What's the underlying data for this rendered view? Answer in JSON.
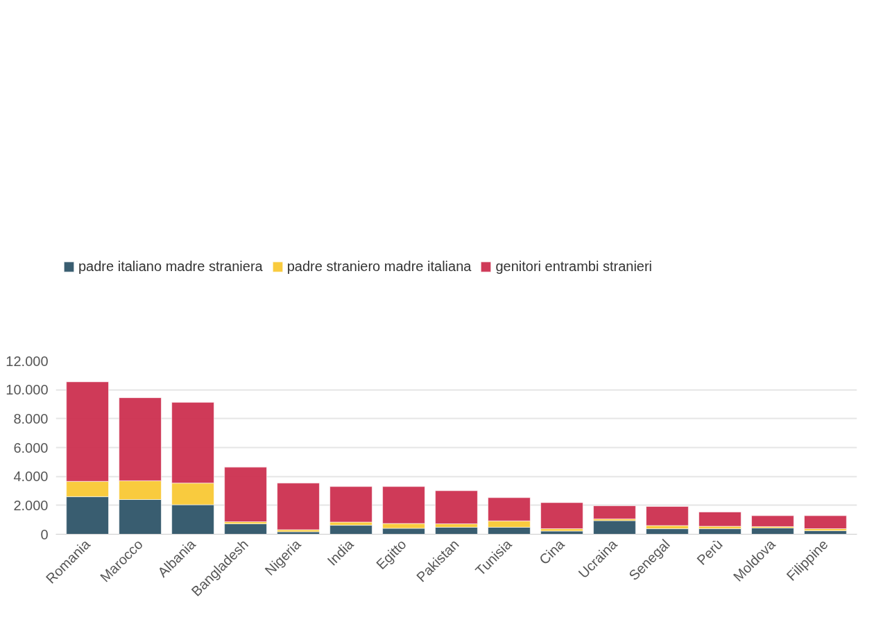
{
  "chart_data": {
    "type": "bar",
    "stacked": true,
    "categories": [
      "Romania",
      "Marocco",
      "Albania",
      "Bangladesh",
      "Nigeria",
      "India",
      "Egitto",
      "Pakistan",
      "Tunisia",
      "Cina",
      "Ucraina",
      "Senegal",
      "Perù",
      "Moldova",
      "Filippine"
    ],
    "series": [
      {
        "name": "padre italiano madre straniera",
        "color": "#2e5468",
        "values": [
          2600,
          2400,
          2040,
          720,
          170,
          620,
          410,
          480,
          480,
          220,
          940,
          380,
          380,
          430,
          240
        ]
      },
      {
        "name": "padre straniero madre italiana",
        "color": "#f9c834",
        "values": [
          1060,
          1300,
          1500,
          140,
          140,
          220,
          330,
          240,
          440,
          160,
          120,
          220,
          170,
          100,
          140
        ]
      },
      {
        "name": "genitori entrambi stranieri",
        "color": "#cc2f4f",
        "values": [
          6890,
          5750,
          5590,
          3780,
          3230,
          2460,
          2560,
          2290,
          1610,
          1810,
          910,
          1320,
          990,
          750,
          900
        ]
      }
    ],
    "ylim": [
      0,
      12000
    ],
    "yticks": [
      {
        "value": 0,
        "label": "0"
      },
      {
        "value": 2000,
        "label": "2.000"
      },
      {
        "value": 4000,
        "label": "4.000"
      },
      {
        "value": 6000,
        "label": "6.000"
      },
      {
        "value": 8000,
        "label": "8.000"
      },
      {
        "value": 10000,
        "label": "10.000"
      },
      {
        "value": 12000,
        "label": "12.000"
      }
    ],
    "grid": "y",
    "legend": "top left"
  }
}
